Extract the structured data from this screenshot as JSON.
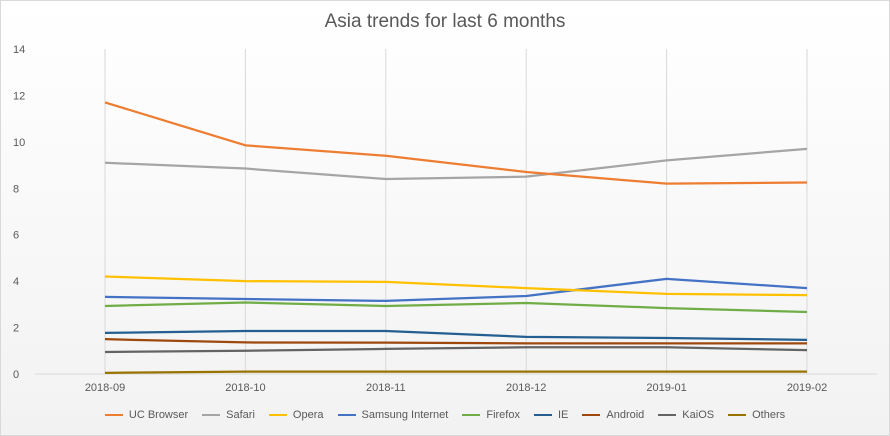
{
  "chart_data": {
    "type": "line",
    "title": "Asia trends for last 6 months",
    "xlabel": "",
    "ylabel": "",
    "ylim": [
      0,
      14
    ],
    "yticks": [
      0,
      2,
      4,
      6,
      8,
      10,
      12,
      14
    ],
    "grid": "vertical",
    "legend": "bottom",
    "categories": [
      "2018-09",
      "2018-10",
      "2018-11",
      "2018-12",
      "2019-01",
      "2019-02"
    ],
    "series": [
      {
        "name": "UC Browser",
        "color": "#ed7d31",
        "values": [
          11.7,
          9.85,
          9.4,
          8.7,
          8.2,
          8.25
        ]
      },
      {
        "name": "Safari",
        "color": "#a5a5a5",
        "values": [
          9.1,
          8.85,
          8.4,
          8.5,
          9.2,
          9.7
        ]
      },
      {
        "name": "Opera",
        "color": "#ffc000",
        "values": [
          4.2,
          4.0,
          3.97,
          3.7,
          3.45,
          3.4
        ]
      },
      {
        "name": "Samsung Internet",
        "color": "#4472c4",
        "values": [
          3.32,
          3.23,
          3.15,
          3.36,
          4.1,
          3.7
        ]
      },
      {
        "name": "Firefox",
        "color": "#70ad47",
        "values": [
          2.93,
          3.08,
          2.93,
          3.06,
          2.84,
          2.67
        ]
      },
      {
        "name": "IE",
        "color": "#255e91",
        "values": [
          1.77,
          1.85,
          1.85,
          1.6,
          1.55,
          1.47
        ]
      },
      {
        "name": "Android",
        "color": "#9e480e",
        "values": [
          1.5,
          1.36,
          1.35,
          1.32,
          1.32,
          1.32
        ]
      },
      {
        "name": "KaiOS",
        "color": "#636363",
        "values": [
          0.95,
          1.0,
          1.08,
          1.15,
          1.15,
          1.03
        ]
      },
      {
        "name": "Others",
        "color": "#997300",
        "values": [
          0.05,
          0.1,
          0.1,
          0.1,
          0.1,
          0.1
        ]
      }
    ]
  }
}
